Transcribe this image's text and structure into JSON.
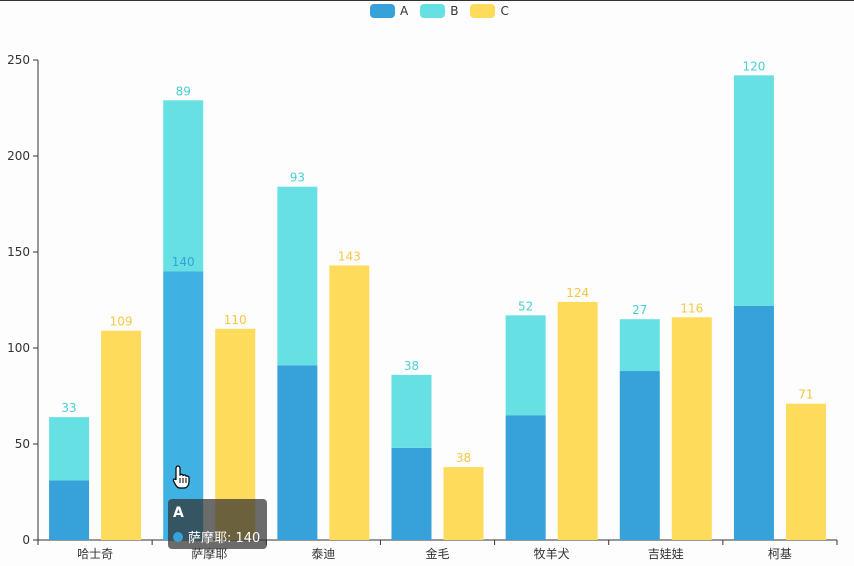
{
  "legend": [
    {
      "name": "A",
      "color": "#37a2da"
    },
    {
      "name": "B",
      "color": "#67e0e3"
    },
    {
      "name": "C",
      "color": "#ffdb5c"
    }
  ],
  "tooltip": {
    "series": "A",
    "category": "萨摩耶",
    "value": "140",
    "text": "萨摩耶: 140",
    "color": "#37a2da"
  },
  "cursor_icon": "hand-pointer-icon",
  "chart_data": {
    "type": "bar",
    "stacked_series": [
      "A",
      "B"
    ],
    "categories": [
      "哈士奇",
      "萨摩耶",
      "泰迪",
      "金毛",
      "牧羊犬",
      "吉娃娃",
      "柯基"
    ],
    "series": [
      {
        "name": "A",
        "stack": "AB",
        "color": "#37a2da",
        "values": [
          31,
          140,
          91,
          48,
          65,
          88,
          122
        ],
        "labels": [
          "",
          "140",
          "",
          "",
          "",
          "",
          ""
        ]
      },
      {
        "name": "B",
        "stack": "AB",
        "color": "#67e0e3",
        "values": [
          33,
          89,
          93,
          38,
          52,
          27,
          120
        ],
        "labels": [
          "33",
          "89",
          "93",
          "38",
          "52",
          "27",
          "120"
        ]
      },
      {
        "name": "C",
        "stack": "C",
        "color": "#ffdb5c",
        "values": [
          109,
          110,
          143,
          38,
          124,
          116,
          71
        ],
        "labels": [
          "109",
          "110",
          "143",
          "38",
          "124",
          "116",
          "71"
        ]
      }
    ],
    "ylim": [
      0,
      250
    ],
    "yticks": [
      0,
      50,
      100,
      150,
      200,
      250
    ],
    "grid": false,
    "legend_position": "top-center",
    "highlighted": {
      "series": "A",
      "category": "萨摩耶"
    }
  }
}
